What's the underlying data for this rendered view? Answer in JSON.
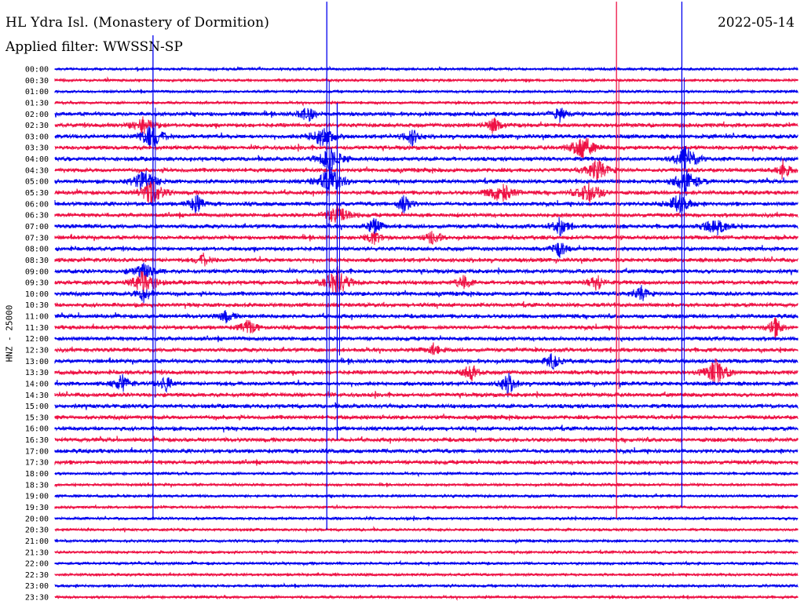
{
  "header": {
    "station": "HL Ydra Isl. (Monastery of Dormition)",
    "date": "2022-05-14",
    "filter_prefix": "Applied filter:",
    "filter_name": "WWSSN-SP"
  },
  "chart_data": {
    "type": "line",
    "title": "HL Ydra Isl. (Monastery of Dormition)",
    "date": "2022-05-14",
    "filter": "WWSSN-SP",
    "channel_label": "HNZ - 25000",
    "time_labels": [
      "00:00",
      "00:30",
      "01:00",
      "01:30",
      "02:00",
      "02:30",
      "03:00",
      "03:30",
      "04:00",
      "04:30",
      "05:00",
      "05:30",
      "06:00",
      "06:30",
      "07:00",
      "07:30",
      "08:00",
      "08:30",
      "09:00",
      "09:30",
      "10:00",
      "10:30",
      "11:00",
      "11:30",
      "12:00",
      "12:30",
      "13:00",
      "13:30",
      "14:00",
      "14:30",
      "15:00",
      "15:30",
      "16:00",
      "16:30",
      "17:00",
      "17:30",
      "18:00",
      "18:30",
      "19:00",
      "19:30",
      "20:00",
      "20:30",
      "21:00",
      "21:30",
      "22:00",
      "22:30",
      "23:00",
      "23:30"
    ],
    "colors": {
      "even_rows": "#0000ee",
      "odd_rows": "#ee1144"
    },
    "events": [
      {
        "row": 4,
        "x": 0.34,
        "amp": 1.4,
        "w": 0.02
      },
      {
        "row": 4,
        "x": 0.68,
        "amp": 1.2,
        "w": 0.02
      },
      {
        "row": 5,
        "x": 0.12,
        "amp": 1.5,
        "w": 0.03
      },
      {
        "row": 5,
        "x": 0.59,
        "amp": 1.3,
        "w": 0.02
      },
      {
        "row": 6,
        "x": 0.13,
        "amp": 2.2,
        "w": 0.03
      },
      {
        "row": 6,
        "x": 0.36,
        "amp": 1.8,
        "w": 0.03
      },
      {
        "row": 6,
        "x": 0.48,
        "amp": 1.6,
        "w": 0.02
      },
      {
        "row": 7,
        "x": 0.71,
        "amp": 2.4,
        "w": 0.03
      },
      {
        "row": 8,
        "x": 0.37,
        "amp": 2.0,
        "w": 0.03
      },
      {
        "row": 8,
        "x": 0.85,
        "amp": 2.2,
        "w": 0.03
      },
      {
        "row": 9,
        "x": 0.73,
        "amp": 1.8,
        "w": 0.03
      },
      {
        "row": 9,
        "x": 0.98,
        "amp": 1.6,
        "w": 0.02
      },
      {
        "row": 10,
        "x": 0.12,
        "amp": 2.0,
        "w": 0.03
      },
      {
        "row": 10,
        "x": 0.37,
        "amp": 2.6,
        "w": 0.03
      },
      {
        "row": 10,
        "x": 0.85,
        "amp": 2.2,
        "w": 0.03
      },
      {
        "row": 11,
        "x": 0.13,
        "amp": 2.2,
        "w": 0.03
      },
      {
        "row": 11,
        "x": 0.6,
        "amp": 2.0,
        "w": 0.03
      },
      {
        "row": 11,
        "x": 0.72,
        "amp": 2.0,
        "w": 0.03
      },
      {
        "row": 12,
        "x": 0.19,
        "amp": 1.6,
        "w": 0.02
      },
      {
        "row": 12,
        "x": 0.47,
        "amp": 1.6,
        "w": 0.02
      },
      {
        "row": 12,
        "x": 0.84,
        "amp": 1.6,
        "w": 0.03
      },
      {
        "row": 13,
        "x": 0.38,
        "amp": 1.8,
        "w": 0.03
      },
      {
        "row": 14,
        "x": 0.43,
        "amp": 1.4,
        "w": 0.02
      },
      {
        "row": 14,
        "x": 0.68,
        "amp": 1.6,
        "w": 0.02
      },
      {
        "row": 14,
        "x": 0.89,
        "amp": 1.5,
        "w": 0.03
      },
      {
        "row": 15,
        "x": 0.43,
        "amp": 1.2,
        "w": 0.02
      },
      {
        "row": 15,
        "x": 0.51,
        "amp": 1.3,
        "w": 0.02
      },
      {
        "row": 16,
        "x": 0.68,
        "amp": 1.2,
        "w": 0.02
      },
      {
        "row": 17,
        "x": 0.2,
        "amp": 1.0,
        "w": 0.02
      },
      {
        "row": 18,
        "x": 0.12,
        "amp": 1.3,
        "w": 0.03
      },
      {
        "row": 19,
        "x": 0.12,
        "amp": 2.4,
        "w": 0.03
      },
      {
        "row": 19,
        "x": 0.38,
        "amp": 2.6,
        "w": 0.03
      },
      {
        "row": 19,
        "x": 0.55,
        "amp": 1.2,
        "w": 0.02
      },
      {
        "row": 19,
        "x": 0.73,
        "amp": 1.4,
        "w": 0.02
      },
      {
        "row": 20,
        "x": 0.12,
        "amp": 1.4,
        "w": 0.02
      },
      {
        "row": 20,
        "x": 0.79,
        "amp": 1.2,
        "w": 0.02
      },
      {
        "row": 22,
        "x": 0.23,
        "amp": 1.0,
        "w": 0.02
      },
      {
        "row": 23,
        "x": 0.26,
        "amp": 1.4,
        "w": 0.02
      },
      {
        "row": 23,
        "x": 0.97,
        "amp": 1.6,
        "w": 0.02
      },
      {
        "row": 25,
        "x": 0.51,
        "amp": 1.0,
        "w": 0.02
      },
      {
        "row": 26,
        "x": 0.67,
        "amp": 1.4,
        "w": 0.02
      },
      {
        "row": 27,
        "x": 0.56,
        "amp": 1.6,
        "w": 0.02
      },
      {
        "row": 27,
        "x": 0.89,
        "amp": 2.2,
        "w": 0.03
      },
      {
        "row": 28,
        "x": 0.09,
        "amp": 1.6,
        "w": 0.02
      },
      {
        "row": 28,
        "x": 0.61,
        "amp": 2.0,
        "w": 0.02
      },
      {
        "row": 28,
        "x": 0.15,
        "amp": 1.2,
        "w": 0.02
      }
    ],
    "spikes": [
      {
        "x": 0.132,
        "top_row": -3,
        "bottom_row": 40,
        "color": "blue"
      },
      {
        "x": 0.366,
        "top_row": -6,
        "bottom_row": 41,
        "color": "blue"
      },
      {
        "x": 0.756,
        "top_row": -6,
        "bottom_row": 40,
        "color": "red"
      },
      {
        "x": 0.844,
        "top_row": -6,
        "bottom_row": 39,
        "color": "blue"
      },
      {
        "x": 0.38,
        "top_row": 3,
        "bottom_row": 33,
        "color": "blue"
      }
    ]
  }
}
